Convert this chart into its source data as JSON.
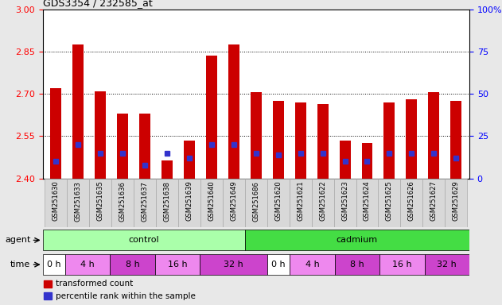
{
  "title": "GDS3354 / 232585_at",
  "samples": [
    "GSM251630",
    "GSM251633",
    "GSM251635",
    "GSM251636",
    "GSM251637",
    "GSM251638",
    "GSM251639",
    "GSM251640",
    "GSM251649",
    "GSM251686",
    "GSM251620",
    "GSM251621",
    "GSM251622",
    "GSM251623",
    "GSM251624",
    "GSM251625",
    "GSM251626",
    "GSM251627",
    "GSM251629"
  ],
  "transformed_count": [
    2.72,
    2.875,
    2.71,
    2.63,
    2.63,
    2.465,
    2.535,
    2.835,
    2.875,
    2.705,
    2.675,
    2.67,
    2.665,
    2.535,
    2.525,
    2.67,
    2.68,
    2.705,
    2.675
  ],
  "percentile_rank": [
    10,
    20,
    15,
    15,
    8,
    15,
    12,
    20,
    20,
    15,
    14,
    15,
    15,
    10,
    10,
    15,
    15,
    15,
    12
  ],
  "bar_color": "#cc0000",
  "blue_color": "#3333cc",
  "ylim_left": [
    2.4,
    3.0
  ],
  "ylim_right": [
    0,
    100
  ],
  "yticks_left": [
    2.4,
    2.55,
    2.7,
    2.85,
    3.0
  ],
  "yticks_right": [
    0,
    25,
    50,
    75,
    100
  ],
  "hlines": [
    2.55,
    2.7,
    2.85
  ],
  "agent_groups": [
    {
      "label": "control",
      "start": 0,
      "end": 9,
      "color": "#aaffaa"
    },
    {
      "label": "cadmium",
      "start": 9,
      "end": 19,
      "color": "#44dd44"
    }
  ],
  "time_groups": [
    {
      "label": "0 h",
      "start": 0,
      "end": 1,
      "color": "#ffffff"
    },
    {
      "label": "4 h",
      "start": 1,
      "end": 3,
      "color": "#ee88ee"
    },
    {
      "label": "8 h",
      "start": 3,
      "end": 5,
      "color": "#cc44cc"
    },
    {
      "label": "16 h",
      "start": 5,
      "end": 7,
      "color": "#ee88ee"
    },
    {
      "label": "32 h",
      "start": 7,
      "end": 10,
      "color": "#cc44cc"
    },
    {
      "label": "0 h",
      "start": 10,
      "end": 11,
      "color": "#ffffff"
    },
    {
      "label": "4 h",
      "start": 11,
      "end": 13,
      "color": "#ee88ee"
    },
    {
      "label": "8 h",
      "start": 13,
      "end": 15,
      "color": "#cc44cc"
    },
    {
      "label": "16 h",
      "start": 15,
      "end": 17,
      "color": "#ee88ee"
    },
    {
      "label": "32 h",
      "start": 17,
      "end": 19,
      "color": "#cc44cc"
    }
  ],
  "background_color": "#e8e8e8",
  "plot_bg": "#ffffff",
  "bar_width": 0.5,
  "legend_items": [
    {
      "label": "transformed count",
      "color": "#cc0000"
    },
    {
      "label": "percentile rank within the sample",
      "color": "#3333cc"
    }
  ]
}
